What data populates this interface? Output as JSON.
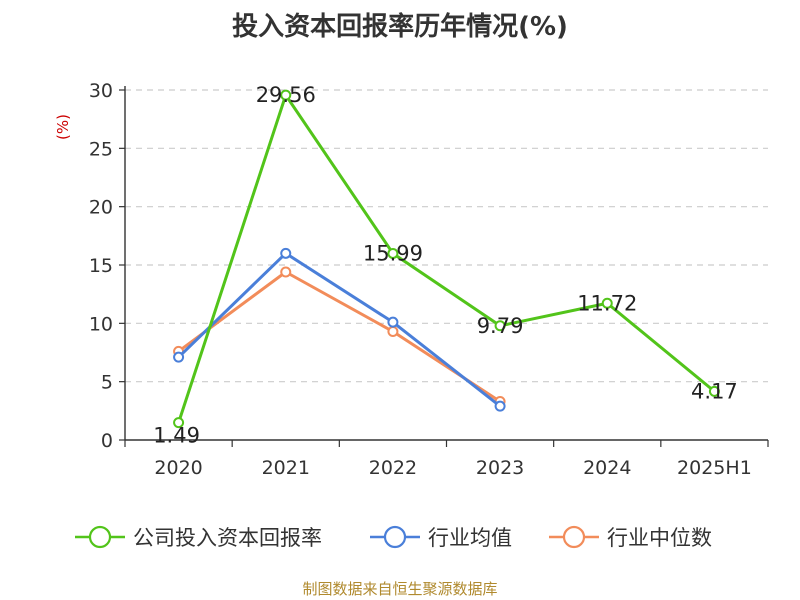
{
  "title": "投入资本回报率历年情况(%)",
  "source": "制图数据来自恒生聚源数据库",
  "chart_data": {
    "type": "line",
    "title": "投入资本回报率历年情况(%)",
    "ylabel": "(%)",
    "xlabel": "",
    "categories": [
      "2020",
      "2021",
      "2022",
      "2023",
      "2024",
      "2025H1"
    ],
    "ylim": [
      0,
      30
    ],
    "yticks": [
      0,
      5,
      10,
      15,
      20,
      25,
      30
    ],
    "grid": true,
    "legend_position": "bottom",
    "series": [
      {
        "name": "公司投入资本回报率",
        "color": "#52c41a",
        "values": [
          1.49,
          29.56,
          15.99,
          9.79,
          11.72,
          4.17
        ],
        "labels": [
          "1.49",
          "29.56",
          "15.99",
          "9.79",
          "11.72",
          "4.17"
        ]
      },
      {
        "name": "行业均值",
        "color": "#4a7fd9",
        "values": [
          7.1,
          16.0,
          10.1,
          2.9,
          null,
          null
        ],
        "labels": []
      },
      {
        "name": "行业中位数",
        "color": "#f28c5a",
        "values": [
          7.6,
          14.4,
          9.3,
          3.3,
          null,
          null
        ],
        "labels": []
      }
    ]
  }
}
